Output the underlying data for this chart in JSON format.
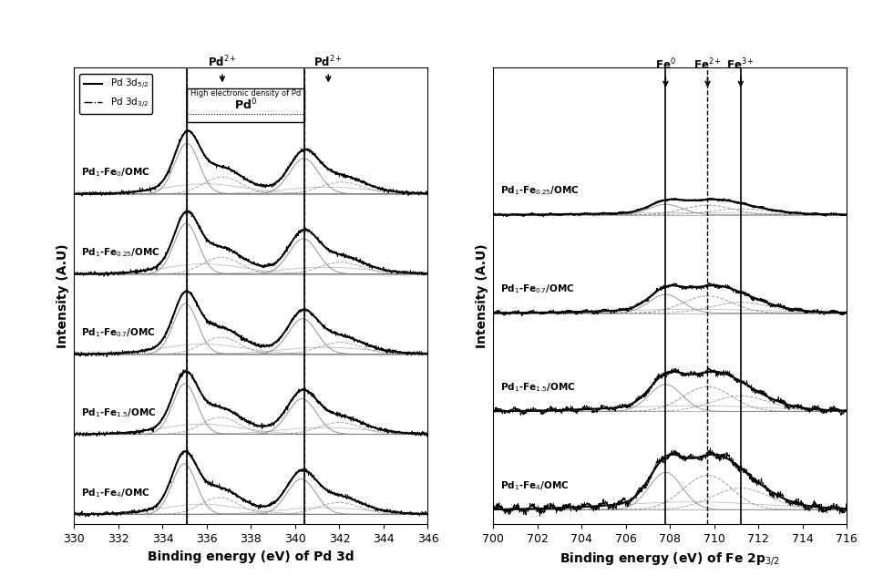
{
  "pd_xlim": [
    330,
    346
  ],
  "pd_xticks": [
    330,
    332,
    334,
    336,
    338,
    340,
    342,
    344,
    346
  ],
  "fe_xlim": [
    700,
    716
  ],
  "fe_xticks": [
    700,
    702,
    704,
    706,
    708,
    710,
    712,
    714,
    716
  ],
  "pd_vline1": 335.1,
  "pd_vline2": 340.4,
  "fe_vline1": 707.8,
  "fe_vline2": 709.7,
  "fe_vline3": 711.2,
  "pd_xlabel": "Binding energy (eV) of Pd 3d",
  "fe_xlabel": "Binding energy (eV) of Fe 2p",
  "ylabel": "Intensity (A.U)",
  "bg_color": "#ffffff"
}
